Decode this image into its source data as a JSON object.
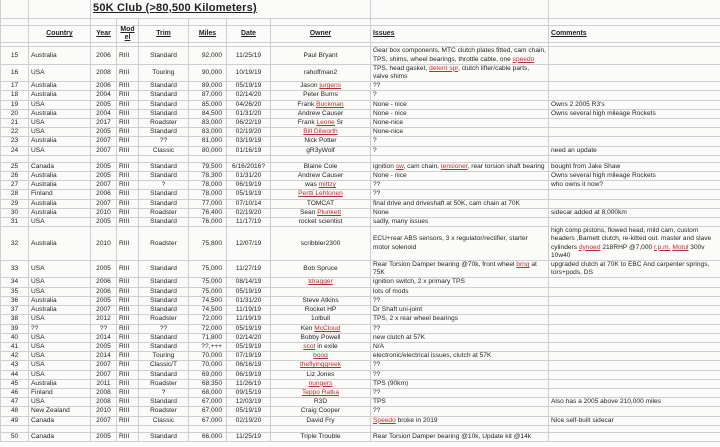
{
  "title": "50K Club   (>80,500 Kilometers)",
  "colors": {
    "red_word": "#b42f2f",
    "gridline": "#cfcfcf",
    "text": "#1f1f1f",
    "background": "#fbfbf9"
  },
  "columns": [
    "",
    "Country",
    "Year",
    "Model",
    "Trim",
    "Miles",
    "Date",
    "Owner",
    "Issues",
    "Comments"
  ],
  "rows": [
    {
      "n": "15",
      "country": "Australia",
      "year": "2006",
      "model": "RIII",
      "trim": "Standard",
      "miles": "92,000",
      "date": "11/25/19",
      "owner": [
        {
          "t": "Paul Bryant"
        }
      ],
      "issues": [
        {
          "t": "Gear box components, MTC clutch plates fitted, cam chain, TPS, shims, wheel bearings, throttle cable, one "
        },
        {
          "t": "speedo",
          "r": true
        }
      ],
      "comments": []
    },
    {
      "n": "16",
      "country": "USA",
      "year": "2008",
      "model": "RIII",
      "trim": "Touring",
      "miles": "90,000",
      "date": "10/19/19",
      "owner": [
        {
          "t": "rahoffman2"
        }
      ],
      "issues": [
        {
          "t": "TPS, head gasket, "
        },
        {
          "t": "detent spr",
          "r": true
        },
        {
          "t": ", clutch lifter/cable parts, valve shims"
        }
      ],
      "comments": []
    },
    {
      "n": "17",
      "country": "Australia",
      "year": "2006",
      "model": "RIII",
      "trim": "Standard",
      "miles": "89,000",
      "date": "05/19/19",
      "owner": [
        {
          "t": "Jason "
        },
        {
          "t": "jurgens",
          "r": true
        }
      ],
      "issues": [
        {
          "t": "??"
        }
      ],
      "comments": []
    },
    {
      "n": "18",
      "country": "Australia",
      "year": "2004",
      "model": "RIII",
      "trim": "Standard",
      "miles": "87,000",
      "date": "02/14/20",
      "owner": [
        {
          "t": "Peter Burns"
        }
      ],
      "issues": [
        {
          "t": "?"
        }
      ],
      "comments": []
    },
    {
      "n": "19",
      "country": "USA",
      "year": "2005",
      "model": "RIII",
      "trim": "Standard",
      "miles": "85,000",
      "date": "04/26/20",
      "owner": [
        {
          "t": "Frank "
        },
        {
          "t": "Buckman",
          "r": true
        }
      ],
      "issues": [
        {
          "t": "None - nice"
        }
      ],
      "comments": [
        {
          "t": "Owns 2 2005 R3's"
        }
      ]
    },
    {
      "n": "20",
      "country": "Australia",
      "year": "2004",
      "model": "RIII",
      "trim": "Standard",
      "miles": "84,500",
      "date": "01/31/20",
      "owner": [
        {
          "t": "Andrew Causer"
        }
      ],
      "issues": [
        {
          "t": "None - nice"
        }
      ],
      "comments": [
        {
          "t": "Owns several high mileage Rockets"
        }
      ]
    },
    {
      "n": "21",
      "country": "USA",
      "year": "2017",
      "model": "RIII",
      "trim": "Roadster",
      "miles": "83,000",
      "date": "06/22/19",
      "owner": [
        {
          "t": "Frank "
        },
        {
          "t": "Leone",
          "r": true
        },
        {
          "t": " Sr"
        }
      ],
      "issues": [
        {
          "t": "None-nice"
        }
      ],
      "comments": []
    },
    {
      "n": "22",
      "country": "USA",
      "year": "2005",
      "model": "RIII",
      "trim": "Standard",
      "miles": "83,000",
      "date": "02/19/20",
      "owner": [
        {
          "t": "Bill Dilworth",
          "r": true
        }
      ],
      "issues": [
        {
          "t": "None-nice"
        }
      ],
      "comments": []
    },
    {
      "n": "23",
      "country": "Australia",
      "year": "2007",
      "model": "RIII",
      "trim": "??",
      "miles": "81,000",
      "date": "03/19/19",
      "owner": [
        {
          "t": "Nick Potter"
        }
      ],
      "issues": [
        {
          "t": "?"
        }
      ],
      "comments": []
    },
    {
      "n": "24",
      "country": "USA",
      "year": "2007",
      "model": "RIII",
      "trim": "Classic",
      "miles": "80,000",
      "date": "01/16/19",
      "owner": [
        {
          "t": "gR3yWolf"
        }
      ],
      "issues": [
        {
          "t": "?"
        }
      ],
      "comments": [
        {
          "t": "need an update"
        }
      ]
    },
    {
      "spacer": true
    },
    {
      "n": "25",
      "country": "Canada",
      "year": "2005",
      "model": "RIII",
      "trim": "Standard",
      "miles": "79,500",
      "date": "6/16/2016?",
      "owner": [
        {
          "t": "Blaine Cole"
        }
      ],
      "issues": [
        {
          "t": "ignition "
        },
        {
          "t": "sw",
          "r": true
        },
        {
          "t": ", cam chain, "
        },
        {
          "t": "tensioner",
          "r": true
        },
        {
          "t": ", rear torsion shaft bearing"
        }
      ],
      "comments": [
        {
          "t": "bought from Jake Shaw"
        }
      ]
    },
    {
      "n": "26",
      "country": "Australia",
      "year": "2005",
      "model": "RIII",
      "trim": "Standard",
      "miles": "78,300",
      "date": "01/31/20",
      "owner": [
        {
          "t": "Andrew Causer"
        }
      ],
      "issues": [
        {
          "t": "None - nice"
        }
      ],
      "comments": [
        {
          "t": "Owns several high mileage Rockets"
        }
      ]
    },
    {
      "n": "27",
      "country": "Australia",
      "year": "2007",
      "model": "RIII",
      "trim": "?",
      "miles": "78,000",
      "date": "06/19/19",
      "owner": [
        {
          "t": "was "
        },
        {
          "t": "mittzy",
          "r": true
        }
      ],
      "issues": [
        {
          "t": "??"
        }
      ],
      "comments": [
        {
          "t": "who owns it now?"
        }
      ]
    },
    {
      "n": "28",
      "country": "Finland",
      "year": "2006",
      "model": "RIII",
      "trim": "Standard",
      "miles": "78,000",
      "date": "05/19/19",
      "owner": [
        {
          "t": "Pertti Lehtonen",
          "r": true
        }
      ],
      "issues": [
        {
          "t": "??"
        }
      ],
      "comments": []
    },
    {
      "n": "29",
      "country": "Australia",
      "year": "2007",
      "model": "RIII",
      "trim": "Standard",
      "miles": "77,000",
      "date": "07/10/14",
      "owner": [
        {
          "t": "TOMCAT"
        }
      ],
      "issues": [
        {
          "t": "final drive and driveshaft at 50K, cam chain at 70K"
        }
      ],
      "comments": []
    },
    {
      "n": "30",
      "country": "Australia",
      "year": "2010",
      "model": "RIII",
      "trim": "Roadster",
      "miles": "76,400",
      "date": "02/19/20",
      "owner": [
        {
          "t": "Sean "
        },
        {
          "t": "Plunkett",
          "r": true
        }
      ],
      "issues": [
        {
          "t": "None"
        }
      ],
      "comments": [
        {
          "t": "sidecar added at 8,000km"
        }
      ]
    },
    {
      "n": "31",
      "country": "USA",
      "year": "2005",
      "model": "RIII",
      "trim": "Standard",
      "miles": "76,000",
      "date": "11/17/19",
      "owner": [
        {
          "t": "rocket scientist"
        }
      ],
      "issues": [
        {
          "t": "sadly, many issues"
        }
      ],
      "comments": []
    },
    {
      "n": "32",
      "country": "Australia",
      "year": "2010",
      "model": "RIII",
      "trim": "Roadster",
      "miles": "75,800",
      "date": "12/07/19",
      "owner": [
        {
          "t": "scribbler2300"
        }
      ],
      "issues": [
        {
          "t": "ECU+rear ABS sensors, 3 x regulator/rectifier, starter motor solenoid"
        }
      ],
      "comments": [
        {
          "t": "high comp pistons, flowed head, mild cam, custom headers ,Barnett clutch, re-kitted out. master and slave cylinders "
        },
        {
          "t": "dynoed",
          "r": true
        },
        {
          "t": " 218RHP @7,000 "
        },
        {
          "t": "r.p.m.",
          "r": true
        },
        {
          "t": " "
        },
        {
          "t": "Motul",
          "r": true
        },
        {
          "t": " 300v 10w40"
        }
      ]
    },
    {
      "n": "33",
      "country": "USA",
      "year": "2005",
      "model": "RIII",
      "trim": "Standard",
      "miles": "75,000",
      "date": "11/27/19",
      "owner": [
        {
          "t": "Bob Spruce"
        }
      ],
      "issues": [
        {
          "t": "Rear Torsion Damper bearing @70k, front wheel "
        },
        {
          "t": "brng",
          "r": true
        },
        {
          "t": " at 75K"
        }
      ],
      "comments": [
        {
          "t": "upgraded  clutch at 70K to EBC And carpenter springs, tors+pods, DS"
        }
      ]
    },
    {
      "n": "34",
      "country": "USA",
      "year": "2006",
      "model": "RIII",
      "trim": "Standard",
      "miles": "75,000",
      "date": "08/14/19",
      "owner": [
        {
          "t": "tdragger",
          "r": true
        }
      ],
      "issues": [
        {
          "t": "ignition switch, 2 x primary TPS"
        }
      ],
      "comments": []
    },
    {
      "n": "35",
      "country": "USA",
      "year": "2006",
      "model": "RIII",
      "trim": "Standard",
      "miles": "75,000",
      "date": "05/19/19",
      "owner": [],
      "issues": [
        {
          "t": "lots of mods"
        }
      ],
      "comments": []
    },
    {
      "n": "36",
      "country": "Australia",
      "year": "2005",
      "model": "RIII",
      "trim": "Standard",
      "miles": "74,500",
      "date": "01/31/20",
      "owner": [
        {
          "t": "Steve Atkins"
        }
      ],
      "issues": [
        {
          "t": "??"
        }
      ],
      "comments": []
    },
    {
      "n": "37",
      "country": "Australia",
      "year": "2007",
      "model": "RIII",
      "trim": "Standard",
      "miles": "74,500",
      "date": "11/19/19",
      "owner": [
        {
          "t": "Rocket HP"
        }
      ],
      "issues": [
        {
          "t": "Dr Shaft uni-joint"
        }
      ],
      "comments": []
    },
    {
      "n": "38",
      "country": "USA",
      "year": "2012",
      "model": "RIII",
      "trim": "Roadster",
      "miles": "72,000",
      "date": "11/19/19",
      "owner": [
        {
          "t": "1olbull"
        }
      ],
      "issues": [
        {
          "t": "TPS, 2 x rear wheel bearings"
        }
      ],
      "comments": []
    },
    {
      "n": "39",
      "country": "??",
      "year": "??",
      "model": "RIII",
      "trim": "??",
      "miles": "72,000",
      "date": "05/19/19",
      "owner": [
        {
          "t": "Ken "
        },
        {
          "t": "McCloud",
          "r": true
        }
      ],
      "issues": [
        {
          "t": "??"
        }
      ],
      "comments": []
    },
    {
      "n": "40",
      "country": "USA",
      "year": "2014",
      "model": "RIII",
      "trim": "Standard",
      "miles": "71,800",
      "date": "02/14/20",
      "owner": [
        {
          "t": "Bobby Powell"
        }
      ],
      "issues": [
        {
          "t": "new clutch at 57K"
        }
      ],
      "comments": []
    },
    {
      "n": "41",
      "country": "USA",
      "year": "2005",
      "model": "RIII",
      "trim": "Standard",
      "miles": "??,+++",
      "date": "05/19/19",
      "owner": [
        {
          "t": "scot",
          "r": true
        },
        {
          "t": " in exile"
        }
      ],
      "issues": [
        {
          "t": "N/A"
        }
      ],
      "comments": []
    },
    {
      "n": "42",
      "country": "USA",
      "year": "2014",
      "model": "RIII",
      "trim": "Touring",
      "miles": "70,000",
      "date": "07/19/19",
      "owner": [
        {
          "t": "boog",
          "r": true
        }
      ],
      "issues": [
        {
          "t": "electronic/electrical issues, clutch at 57K"
        }
      ],
      "comments": []
    },
    {
      "n": "43",
      "country": "USA",
      "year": "2007",
      "model": "RIII",
      "trim": "Classic/T",
      "miles": "70,000",
      "date": "06/16/19",
      "owner": [
        {
          "t": "theflyinggreek",
          "r": true
        }
      ],
      "issues": [
        {
          "t": "??"
        }
      ],
      "comments": []
    },
    {
      "n": "44",
      "country": "USA",
      "year": "2007",
      "model": "RIII",
      "trim": "Standard",
      "miles": "69,000",
      "date": "06/19/19",
      "owner": [
        {
          "t": "Liz Jones"
        }
      ],
      "issues": [
        {
          "t": "??"
        }
      ],
      "comments": []
    },
    {
      "n": "45",
      "country": "Australia",
      "year": "2011",
      "model": "RIII",
      "trim": "Roadster",
      "miles": "68,350",
      "date": "11/26/19",
      "owner": [
        {
          "t": "nungers",
          "r": true
        }
      ],
      "issues": [
        {
          "t": "TPS (90km)"
        }
      ],
      "comments": []
    },
    {
      "n": "46",
      "country": "Finland",
      "year": "2008",
      "model": "RIII",
      "trim": "?",
      "miles": "68,000",
      "date": "09/15/19",
      "owner": [
        {
          "t": "Teppo Ratka",
          "r": true
        }
      ],
      "issues": [
        {
          "t": "??"
        }
      ],
      "comments": []
    },
    {
      "n": "47",
      "country": "USA",
      "year": "2008",
      "model": "RIII",
      "trim": "Standard",
      "miles": "67,000",
      "date": "12/03/19",
      "owner": [
        {
          "t": "R3D"
        }
      ],
      "issues": [
        {
          "t": "TPS"
        }
      ],
      "comments": [
        {
          "t": "Also has a 2005 above 210,000 miles"
        }
      ]
    },
    {
      "n": "48",
      "country": "New Zealand",
      "year": "2010",
      "model": "RIII",
      "trim": "Roadster",
      "miles": "67,000",
      "date": "05/19/19",
      "owner": [
        {
          "t": "Craig Cooper"
        }
      ],
      "issues": [
        {
          "t": "??"
        }
      ],
      "comments": []
    },
    {
      "n": "49",
      "country": "Canada",
      "year": "2007",
      "model": "RIII",
      "trim": "Classic",
      "miles": "67,000",
      "date": "02/19/20",
      "owner": [
        {
          "t": "David Fry"
        }
      ],
      "issues": [
        {
          "t": "Speedo",
          "r": true
        },
        {
          "t": " broke in 2019"
        }
      ],
      "comments": [
        {
          "t": "Nice self-built sidecar"
        }
      ]
    },
    {
      "spacer": true
    },
    {
      "n": "50",
      "country": "Canada",
      "year": "2005",
      "model": "RIII",
      "trim": "Standard",
      "miles": "66,000",
      "date": "11/25/19",
      "owner": [
        {
          "t": "Triple Trouble"
        }
      ],
      "issues": [
        {
          "t": "Rear Torsion Damper bearing @10k, Update kit @14k"
        }
      ],
      "comments": []
    }
  ]
}
